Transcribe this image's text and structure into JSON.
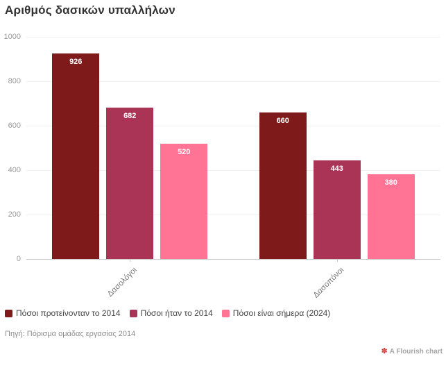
{
  "title": "Αριθμός δασικών υπαλλήλων",
  "chart_data": {
    "type": "bar",
    "grouped": true,
    "title": "Αριθμός δασικών υπαλλήλων",
    "categories": [
      "Δασολόγοι",
      "Δασοπόνοι"
    ],
    "series": [
      {
        "name": "Πόσοι προτείνονταν το 2014",
        "color": "#7f1a1a",
        "values": [
          926,
          660
        ]
      },
      {
        "name": "Πόσοι ήταν το 2014",
        "color": "#a93456",
        "values": [
          682,
          443
        ]
      },
      {
        "name": "Πόσοι είναι σήμερα (2024)",
        "color": "#ff7394",
        "values": [
          520,
          380
        ]
      }
    ],
    "ylim": [
      0,
      1000
    ],
    "yticks": [
      0,
      200,
      400,
      600,
      800,
      1000
    ],
    "grid": true,
    "bar_value_labels": true,
    "legend_position": "bottom-left",
    "xlabel": "",
    "ylabel": ""
  },
  "source": "Πηγή: Πόρισμα ομάδας εργασίας 2014",
  "credit": {
    "icon": "flourish-logo",
    "label": "A Flourish chart"
  },
  "colors": {
    "background": "#ffffff",
    "grid": "#f0f0f0",
    "axis_line": "#c9c9c9",
    "title_text": "#333333",
    "tick_text": "#999999",
    "category_text": "#777777",
    "legend_text": "#444444",
    "source_text": "#8c8c8c",
    "credit_text": "#a6a6a6",
    "credit_logo": "#d32f2f",
    "bar_label_text": "#ffffff"
  }
}
